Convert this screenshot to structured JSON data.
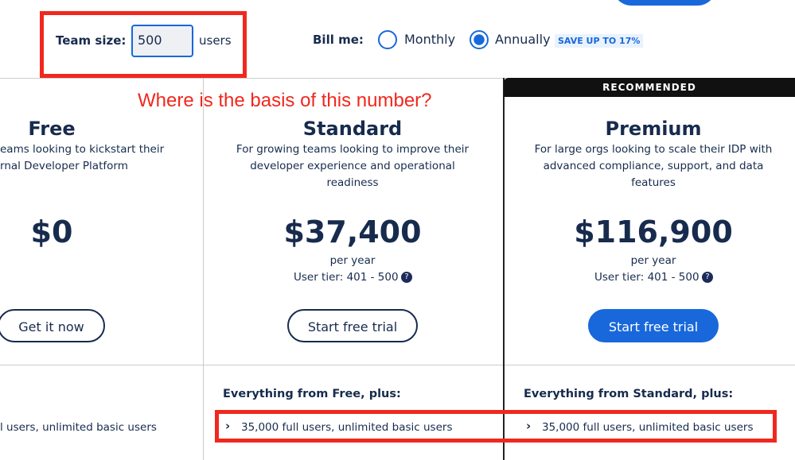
{
  "team_size": {
    "label": "Team size:",
    "value": "500",
    "unit": "users"
  },
  "billing": {
    "label": "Bill me:",
    "options": [
      "Monthly",
      "Annually"
    ],
    "badge": "SAVE UP TO 17%"
  },
  "annotation": "Where is the basis of this number?",
  "plans": [
    {
      "name": "Free",
      "description": [
        "eams looking to kickstart their",
        "rnal Developer Platform"
      ],
      "price": "$0",
      "button": "Get it now",
      "features": [
        "l users, unlimited basic users"
      ]
    },
    {
      "name": "Standard",
      "description": [
        "For growing teams looking to improve their",
        "developer experience and operational",
        "readiness"
      ],
      "price": "$37,400",
      "period": "per year",
      "tier": "User tier: 401 - 500",
      "button": "Start free trial",
      "features_heading": "Everything from Free, plus:",
      "features": [
        "35,000 full users, unlimited basic users"
      ]
    },
    {
      "name": "Premium",
      "badge": "RECOMMENDED",
      "description": [
        "For large orgs looking to scale their IDP with",
        "advanced compliance, support, and data",
        "features"
      ],
      "price": "$116,900",
      "period": "per year",
      "tier": "User tier: 401 - 500",
      "button": "Start free trial",
      "features_heading": "Everything from Standard, plus:",
      "features": [
        "35,000 full users, unlimited basic users"
      ]
    }
  ]
}
